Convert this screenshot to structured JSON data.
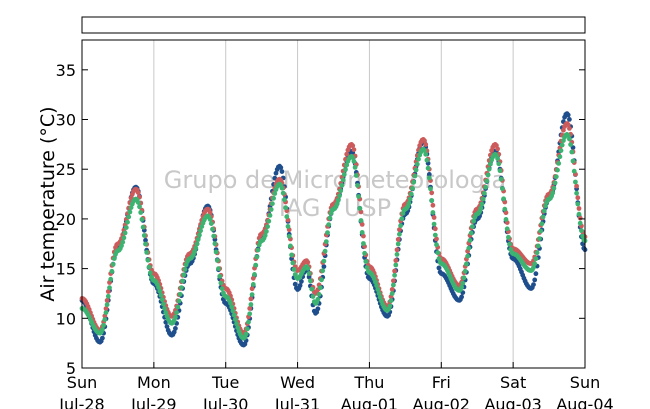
{
  "chart_data": {
    "type": "scatter",
    "title": "",
    "ylabel": "Air temperature (°C)",
    "xlabel": "",
    "ylim": [
      5,
      38
    ],
    "xlim": [
      "2013-07-28 00:00",
      "2013-08-04 00:00"
    ],
    "yticks": [
      5,
      10,
      15,
      20,
      25,
      30,
      35
    ],
    "xticks": [
      {
        "day": "Sun",
        "date": "Jul-28"
      },
      {
        "day": "Mon",
        "date": "Jul-29"
      },
      {
        "day": "Tue",
        "date": "Jul-30"
      },
      {
        "day": "Wed",
        "date": "Jul-31"
      },
      {
        "day": "Thu",
        "date": "Aug-01"
      },
      {
        "day": "Fri",
        "date": "Aug-02"
      },
      {
        "day": "Sat",
        "date": "Aug-03"
      },
      {
        "day": "Sun",
        "date": "Aug-04"
      }
    ],
    "grid": "vertical",
    "legend": "top (empty box)",
    "watermark": [
      "Grupo de Micrometeorologia",
      "IAG / USP"
    ],
    "series": [
      {
        "color": "#1f4e8c",
        "points": [
          [
            "2013-07-28 00:00",
            11.8
          ],
          [
            "2013-07-28 06:00",
            7.6
          ],
          [
            "2013-07-28 12:00",
            17.0
          ],
          [
            "2013-07-28 18:00",
            23.2
          ],
          [
            "2013-07-29 00:00",
            13.5
          ],
          [
            "2013-07-29 06:00",
            8.3
          ],
          [
            "2013-07-29 12:00",
            15.5
          ],
          [
            "2013-07-29 18:00",
            21.3
          ],
          [
            "2013-07-30 00:00",
            11.5
          ],
          [
            "2013-07-30 06:00",
            7.3
          ],
          [
            "2013-07-30 12:00",
            18.0
          ],
          [
            "2013-07-30 18:00",
            25.3
          ],
          [
            "2013-07-31 00:00",
            12.9
          ],
          [
            "2013-07-31 03:00",
            15.0
          ],
          [
            "2013-07-31 06:00",
            10.5
          ],
          [
            "2013-07-31 12:00",
            21.0
          ],
          [
            "2013-07-31 18:00",
            26.8
          ],
          [
            "2013-08-01 00:00",
            14.0
          ],
          [
            "2013-08-01 06:00",
            10.2
          ],
          [
            "2013-08-01 12:00",
            20.5
          ],
          [
            "2013-08-01 18:00",
            27.8
          ],
          [
            "2013-08-02 00:00",
            14.5
          ],
          [
            "2013-08-02 06:00",
            11.8
          ],
          [
            "2013-08-02 12:00",
            20.0
          ],
          [
            "2013-08-02 18:00",
            26.8
          ],
          [
            "2013-08-03 00:00",
            16.0
          ],
          [
            "2013-08-03 06:00",
            13.0
          ],
          [
            "2013-08-03 12:00",
            22.0
          ],
          [
            "2013-08-03 18:00",
            30.6
          ],
          [
            "2013-08-04 00:00",
            16.9
          ]
        ]
      },
      {
        "color": "#cc5b5b",
        "points": [
          [
            "2013-07-28 00:00",
            12.0
          ],
          [
            "2013-07-28 06:00",
            8.8
          ],
          [
            "2013-07-28 12:00",
            17.5
          ],
          [
            "2013-07-28 18:00",
            23.0
          ],
          [
            "2013-07-29 00:00",
            14.5
          ],
          [
            "2013-07-29 06:00",
            10.2
          ],
          [
            "2013-07-29 12:00",
            16.5
          ],
          [
            "2013-07-29 18:00",
            21.0
          ],
          [
            "2013-07-30 00:00",
            13.0
          ],
          [
            "2013-07-30 06:00",
            8.5
          ],
          [
            "2013-07-30 12:00",
            18.5
          ],
          [
            "2013-07-30 18:00",
            24.0
          ],
          [
            "2013-07-31 00:00",
            14.8
          ],
          [
            "2013-07-31 03:00",
            15.8
          ],
          [
            "2013-07-31 06:00",
            12.5
          ],
          [
            "2013-07-31 12:00",
            21.5
          ],
          [
            "2013-07-31 18:00",
            27.5
          ],
          [
            "2013-08-01 00:00",
            15.2
          ],
          [
            "2013-08-01 06:00",
            11.2
          ],
          [
            "2013-08-01 12:00",
            21.5
          ],
          [
            "2013-08-01 18:00",
            28.0
          ],
          [
            "2013-08-02 00:00",
            16.0
          ],
          [
            "2013-08-02 06:00",
            13.3
          ],
          [
            "2013-08-02 12:00",
            21.0
          ],
          [
            "2013-08-02 18:00",
            27.5
          ],
          [
            "2013-08-03 00:00",
            17.0
          ],
          [
            "2013-08-03 06:00",
            15.5
          ],
          [
            "2013-08-03 12:00",
            22.5
          ],
          [
            "2013-08-03 18:00",
            29.6
          ],
          [
            "2013-08-04 00:00",
            18.2
          ]
        ]
      },
      {
        "color": "#3cb371",
        "points": [
          [
            "2013-07-28 00:00",
            11.0
          ],
          [
            "2013-07-28 06:00",
            8.5
          ],
          [
            "2013-07-28 12:00",
            16.8
          ],
          [
            "2013-07-28 18:00",
            22.0
          ],
          [
            "2013-07-29 00:00",
            13.8
          ],
          [
            "2013-07-29 06:00",
            9.5
          ],
          [
            "2013-07-29 12:00",
            16.0
          ],
          [
            "2013-07-29 18:00",
            20.3
          ],
          [
            "2013-07-30 00:00",
            12.2
          ],
          [
            "2013-07-30 06:00",
            8.0
          ],
          [
            "2013-07-30 12:00",
            17.8
          ],
          [
            "2013-07-30 18:00",
            23.5
          ],
          [
            "2013-07-31 00:00",
            14.0
          ],
          [
            "2013-07-31 03:00",
            15.2
          ],
          [
            "2013-07-31 06:00",
            11.5
          ],
          [
            "2013-07-31 12:00",
            21.0
          ],
          [
            "2013-07-31 18:00",
            26.3
          ],
          [
            "2013-08-01 00:00",
            14.6
          ],
          [
            "2013-08-01 06:00",
            10.8
          ],
          [
            "2013-08-01 12:00",
            21.0
          ],
          [
            "2013-08-01 18:00",
            27.0
          ],
          [
            "2013-08-02 00:00",
            15.5
          ],
          [
            "2013-08-02 06:00",
            12.8
          ],
          [
            "2013-08-02 12:00",
            20.5
          ],
          [
            "2013-08-02 18:00",
            26.5
          ],
          [
            "2013-08-03 00:00",
            16.5
          ],
          [
            "2013-08-03 06:00",
            14.8
          ],
          [
            "2013-08-03 12:00",
            22.0
          ],
          [
            "2013-08-03 18:00",
            28.5
          ],
          [
            "2013-08-04 00:00",
            17.8
          ]
        ]
      }
    ]
  }
}
